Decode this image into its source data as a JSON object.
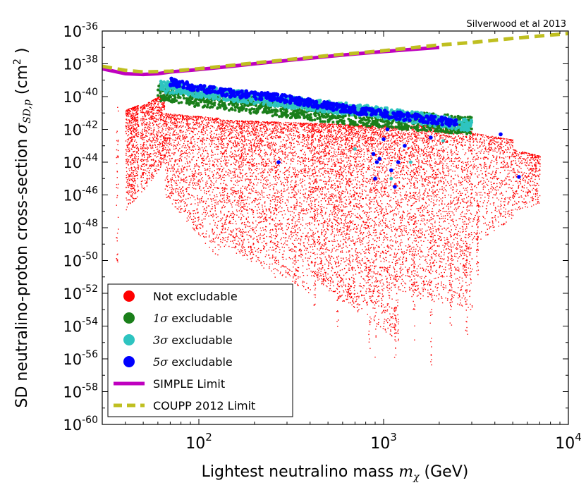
{
  "chart_data": {
    "type": "scatter",
    "annotation": "Silverwood et al 2013",
    "xlabel": {
      "text": "Lightest neutralino mass ",
      "math": "m",
      "sub": "χ",
      "unit": " (GeV)"
    },
    "ylabel": {
      "text": "SD neutralino-proton cross-section ",
      "math": "σ",
      "sub": "SD,p",
      "unit_pre": " (cm",
      "unit_sup": "2",
      "unit_post": " )"
    },
    "x_scale": "log",
    "y_scale": "log",
    "xlim": [
      30,
      10000
    ],
    "ylim": [
      1e-60,
      1e-36
    ],
    "x_ticks": [
      {
        "value": 100,
        "base": "10",
        "exp": "2"
      },
      {
        "value": 1000,
        "base": "10",
        "exp": "3"
      },
      {
        "value": 10000,
        "base": "10",
        "exp": "4"
      }
    ],
    "y_ticks": [
      {
        "exp_num": -60,
        "base": "10",
        "exp": "-60"
      },
      {
        "exp_num": -58,
        "base": "10",
        "exp": "-58"
      },
      {
        "exp_num": -56,
        "base": "10",
        "exp": "-56"
      },
      {
        "exp_num": -54,
        "base": "10",
        "exp": "-54"
      },
      {
        "exp_num": -52,
        "base": "10",
        "exp": "-52"
      },
      {
        "exp_num": -50,
        "base": "10",
        "exp": "-50"
      },
      {
        "exp_num": -48,
        "base": "10",
        "exp": "-48"
      },
      {
        "exp_num": -46,
        "base": "10",
        "exp": "-46"
      },
      {
        "exp_num": -44,
        "base": "10",
        "exp": "-44"
      },
      {
        "exp_num": -42,
        "base": "10",
        "exp": "-42"
      },
      {
        "exp_num": -40,
        "base": "10",
        "exp": "-40"
      },
      {
        "exp_num": -38,
        "base": "10",
        "exp": "-38"
      },
      {
        "exp_num": -36,
        "base": "10",
        "exp": "-36"
      }
    ],
    "legend": {
      "placement": "bottom-left",
      "entries": [
        {
          "label": "Not excludable",
          "sigma": "",
          "color": "#ff0000",
          "kind": "point"
        },
        {
          "label": " excludable",
          "sigma": "1σ",
          "color": "#1a7f1a",
          "kind": "point"
        },
        {
          "label": " excludable",
          "sigma": "3σ",
          "color": "#2ec4c0",
          "kind": "point"
        },
        {
          "label": " excludable",
          "sigma": "5σ",
          "color": "#0000ff",
          "kind": "point"
        },
        {
          "label": "SIMPLE Limit",
          "sigma": "",
          "color": "#bf00bf",
          "kind": "solid"
        },
        {
          "label": "COUPP 2012 Limit",
          "sigma": "",
          "color": "#bfbf20",
          "kind": "dashed"
        }
      ]
    },
    "series": [
      {
        "name": "SIMPLE Limit",
        "kind": "line",
        "style": "solid",
        "color": "#bf00bf",
        "points": [
          [
            30,
            -38.3
          ],
          [
            40,
            -38.6
          ],
          [
            50,
            -38.65
          ],
          [
            60,
            -38.6
          ],
          [
            70,
            -38.5
          ],
          [
            100,
            -38.35
          ],
          [
            150,
            -38.15
          ],
          [
            200,
            -38.0
          ],
          [
            300,
            -37.8
          ],
          [
            500,
            -37.55
          ],
          [
            700,
            -37.4
          ],
          [
            1000,
            -37.25
          ],
          [
            1500,
            -37.1
          ],
          [
            2000,
            -37.0
          ]
        ]
      },
      {
        "name": "COUPP 2012 Limit",
        "kind": "line",
        "style": "dashed",
        "color": "#bfbf20",
        "points": [
          [
            30,
            -38.15
          ],
          [
            40,
            -38.4
          ],
          [
            50,
            -38.5
          ],
          [
            70,
            -38.45
          ],
          [
            100,
            -38.3
          ],
          [
            200,
            -37.95
          ],
          [
            300,
            -37.75
          ],
          [
            500,
            -37.5
          ],
          [
            1000,
            -37.2
          ],
          [
            2000,
            -36.85
          ],
          [
            3000,
            -36.7
          ],
          [
            5000,
            -36.45
          ],
          [
            10000,
            -36.15
          ]
        ]
      },
      {
        "name": "Not excludable",
        "kind": "points",
        "color": "#ff0000",
        "size": 1.4,
        "count": 12000,
        "regions": [
          {
            "x": [
              40,
              47
            ],
            "y_top": [
              -40.8,
              -40.5
            ],
            "y_bot": [
              -47,
              -46
            ],
            "weight": 0.4
          },
          {
            "x": [
              48,
              65
            ],
            "y_top": [
              -40.6,
              -39.8
            ],
            "y_bot": [
              -46,
              -44
            ],
            "weight": 0.6
          },
          {
            "x": [
              65,
              130
            ],
            "y_top": [
              -41.0,
              -41.3
            ],
            "y_bot": [
              -46,
              -50
            ],
            "weight": 1.0
          },
          {
            "x": [
              130,
              400
            ],
            "y_top": [
              -41.4,
              -41.6
            ],
            "y_bot": [
              -49,
              -52
            ],
            "weight": 2.0
          },
          {
            "x": [
              400,
              1200
            ],
            "y_top": [
              -41.6,
              -41.8
            ],
            "y_bot": [
              -51,
              -55
            ],
            "weight": 2.6
          },
          {
            "x": [
              1200,
              3000
            ],
            "y_top": [
              -41.8,
              -41.6
            ],
            "y_bot": [
              -52,
              -53
            ],
            "weight": 1.8
          },
          {
            "x": [
              3000,
              5000
            ],
            "y_top": [
              -42.2,
              -42.6
            ],
            "y_bot": [
              -49,
              -47.5
            ],
            "weight": 0.5
          },
          {
            "x": [
              5000,
              7000
            ],
            "y_top": [
              -43.2,
              -43.6
            ],
            "y_bot": [
              -47,
              -46.5
            ],
            "weight": 0.3
          }
        ],
        "spikes": [
          [
            36,
            -40.5,
            -50.3
          ],
          [
            43,
            -41,
            -46.5
          ],
          [
            170,
            -42,
            -49.5
          ],
          [
            260,
            -43,
            -51
          ],
          [
            330,
            -44,
            -50.5
          ],
          [
            420,
            -43,
            -52.8
          ],
          [
            560,
            -44,
            -54
          ],
          [
            650,
            -44,
            -53
          ],
          [
            830,
            -45,
            -55.5
          ],
          [
            900,
            -44,
            -56
          ],
          [
            1150,
            -45,
            -56
          ],
          [
            1450,
            -44,
            -55.2
          ],
          [
            1800,
            -46,
            -56.5
          ],
          [
            2300,
            -45,
            -54
          ],
          [
            2800,
            -45,
            -54.5
          ],
          [
            3200,
            -45,
            -51
          ]
        ]
      },
      {
        "name": "1σ excludable",
        "kind": "band",
        "color": "#1a7f1a",
        "size": 2.0,
        "count": 1200,
        "ridge": [
          [
            60,
            -39.7
          ],
          [
            80,
            -39.9
          ],
          [
            100,
            -40.1
          ],
          [
            200,
            -40.5
          ],
          [
            400,
            -40.9
          ],
          [
            700,
            -41.2
          ],
          [
            1000,
            -41.4
          ],
          [
            2000,
            -41.6
          ],
          [
            3000,
            -41.8
          ]
        ],
        "spread": 1.1
      },
      {
        "name": "3σ excludable",
        "kind": "band",
        "color": "#2ec4c0",
        "size": 2.4,
        "count": 900,
        "ridge": [
          [
            62,
            -39.4
          ],
          [
            80,
            -39.5
          ],
          [
            100,
            -39.7
          ],
          [
            200,
            -40.1
          ],
          [
            400,
            -40.5
          ],
          [
            700,
            -40.8
          ],
          [
            1000,
            -41.0
          ],
          [
            2000,
            -41.5
          ],
          [
            3000,
            -41.8
          ]
        ],
        "spread": 0.7
      },
      {
        "name": "5σ excludable",
        "kind": "band",
        "color": "#0000ff",
        "size": 2.8,
        "count": 420,
        "ridge": [
          [
            70,
            -39.1
          ],
          [
            90,
            -39.4
          ],
          [
            150,
            -39.8
          ],
          [
            250,
            -40.0
          ],
          [
            400,
            -40.4
          ],
          [
            600,
            -40.7
          ],
          [
            900,
            -41.0
          ],
          [
            1500,
            -41.3
          ],
          [
            2500,
            -41.6
          ]
        ],
        "spread": 0.45
      },
      {
        "name": "5σ excludable (outliers)",
        "kind": "points_list",
        "color": "#0000ff",
        "size": 2.8,
        "points": [
          [
            270,
            -44
          ],
          [
            880,
            -43.5
          ],
          [
            900,
            -45
          ],
          [
            920,
            -44
          ],
          [
            950,
            -43.8
          ],
          [
            1000,
            -42.6
          ],
          [
            1050,
            -42
          ],
          [
            1100,
            -44.5
          ],
          [
            1150,
            -45.5
          ],
          [
            1200,
            -44
          ],
          [
            1300,
            -43
          ],
          [
            1800,
            -42.5
          ],
          [
            5400,
            -44.9
          ],
          [
            4300,
            -42.3
          ]
        ]
      },
      {
        "name": "3σ excludable (outliers)",
        "kind": "points_list",
        "color": "#2ec4c0",
        "size": 2.4,
        "points": [
          [
            700,
            -43.2
          ],
          [
            1100,
            -45
          ],
          [
            1400,
            -44
          ],
          [
            2100,
            -42.7
          ]
        ]
      }
    ]
  }
}
